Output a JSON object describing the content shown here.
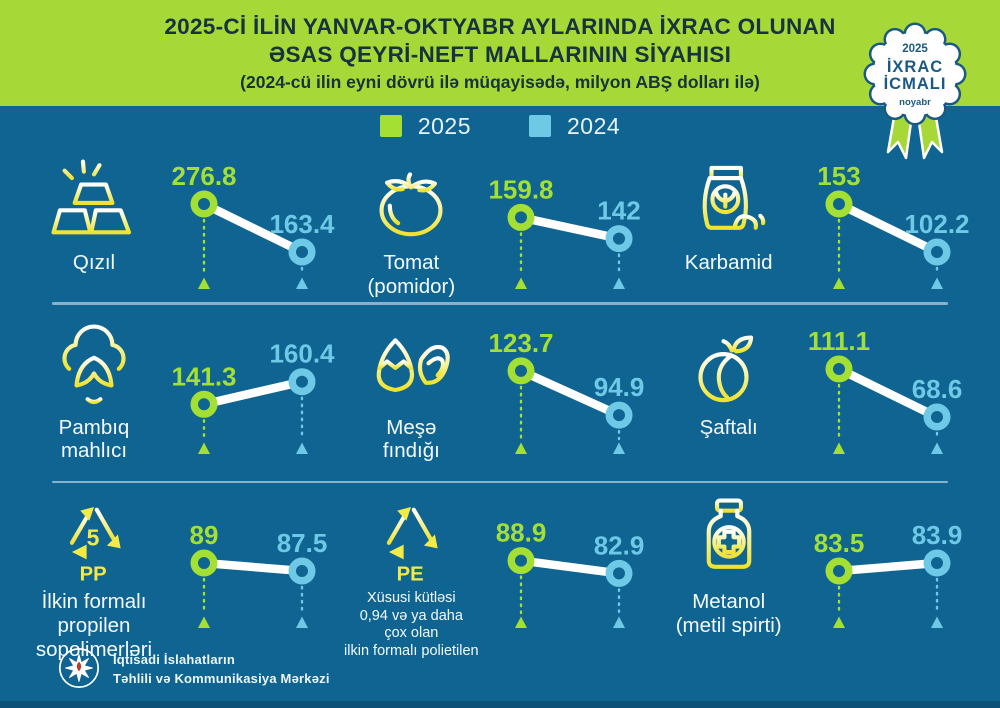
{
  "header": {
    "title_line1": "2025-Cİ İLİN YANVAR-OKTYABR AYLARINDA İXRAC OLUNAN",
    "title_line2": "ƏSAS QEYRİ-NEFT MALLARININ SİYAHISI",
    "subtitle": "(2024-cü ilin eyni dövrü ilə müqayisədə, milyon ABŞ dolları ilə)"
  },
  "badge": {
    "year": "2025",
    "line1": "İXRAC",
    "line2": "İCMALI",
    "month": "noyabr"
  },
  "legend": [
    {
      "label": "2025",
      "color": "#a4df33"
    },
    {
      "label": "2024",
      "color": "#6ec9e6"
    }
  ],
  "footer": {
    "org_line1": "İqtisadi İslahatların",
    "org_line2": "Təhlili və Kommunikasiya Mərkəzi"
  },
  "colors": {
    "background": "#0f6492",
    "header_bg": "#a6d838",
    "title_color": "#17333d",
    "accent_2025": "#a4df33",
    "accent_2024": "#6ec9e6",
    "icon_yellow": "#f2ea45",
    "badge_navy": "#1a5a82",
    "slope_line": "#ffffff"
  },
  "chart_data": {
    "type": "slope",
    "title": "2025-ci ilin yanvar-oktyabr aylarında ixrac olunan əsas qeyri-neft mallarının siyahısı",
    "unit": "milyon ABŞ dolları",
    "series_years": [
      "2025",
      "2024"
    ],
    "legend_position": "top-center",
    "items": [
      {
        "name": "Qızıl",
        "name_lines": [
          "Qızıl"
        ],
        "icon": "gold-bars-icon",
        "value_2025": 276.8,
        "value_2024": 163.4
      },
      {
        "name": "Tomat (pomidor)",
        "name_lines": [
          "Tomat",
          "(pomidor)"
        ],
        "icon": "tomato-icon",
        "value_2025": 159.8,
        "value_2024": 142
      },
      {
        "name": "Karbamid",
        "name_lines": [
          "Karbamid"
        ],
        "icon": "fertilizer-bag-icon",
        "value_2025": 153,
        "value_2024": 102.2
      },
      {
        "name": "Pambıq mahlıcı",
        "name_lines": [
          "Pambıq",
          "mahlıcı"
        ],
        "icon": "cotton-icon",
        "value_2025": 141.3,
        "value_2024": 160.4
      },
      {
        "name": "Meşə fındığı",
        "name_lines": [
          "Meşə",
          "fındığı"
        ],
        "icon": "hazelnut-icon",
        "value_2025": 123.7,
        "value_2024": 94.9
      },
      {
        "name": "Şaftalı",
        "name_lines": [
          "Şaftalı"
        ],
        "icon": "peach-icon",
        "value_2025": 111.1,
        "value_2024": 68.6
      },
      {
        "name": "İlkin formalı propilen sopolimerləri",
        "name_lines": [
          "İlkin formalı",
          "propilen",
          "sopolimerləri"
        ],
        "icon": "recycle-pp-icon",
        "icon_number": "5",
        "icon_code": "PP",
        "value_2025": 89,
        "value_2024": 87.5
      },
      {
        "name": "Xüsusi kütləsi 0,94 və ya daha çox olan ilkin formalı polietilen",
        "name_lines": [
          "Xüsusi kütləsi",
          "0,94 və ya daha",
          "çox olan",
          "ilkin formalı polietilen"
        ],
        "small_label": true,
        "icon": "recycle-pe-icon",
        "icon_code": "PE",
        "value_2025": 88.9,
        "value_2024": 82.9
      },
      {
        "name": "Metanol (metil spirti)",
        "name_lines": [
          "Metanol",
          "(metil spirti)"
        ],
        "icon": "methanol-bottle-icon",
        "value_2025": 83.5,
        "value_2024": 83.9
      }
    ]
  }
}
